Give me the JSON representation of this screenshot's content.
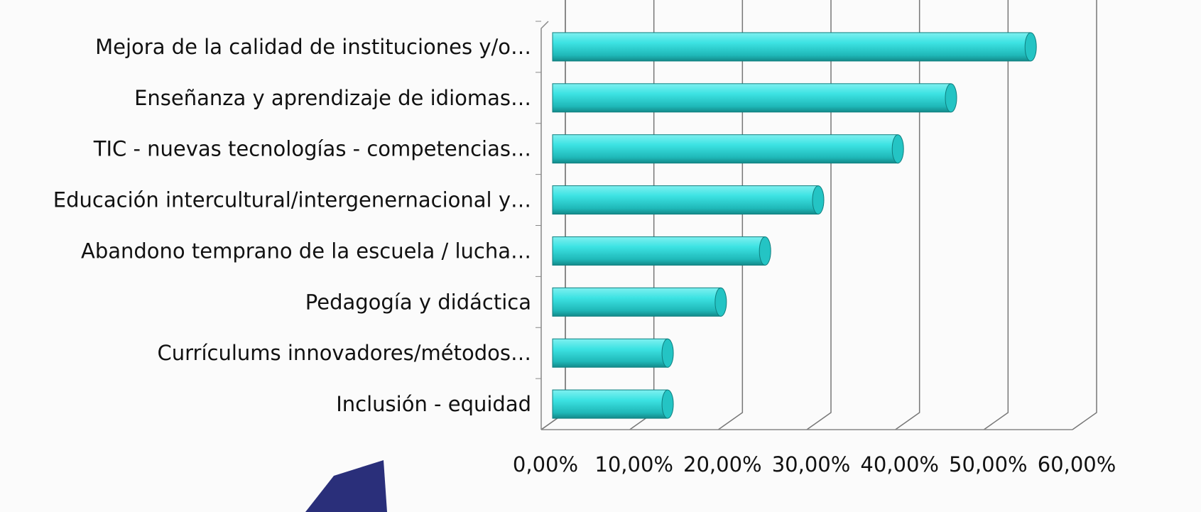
{
  "chart_data": {
    "type": "bar",
    "orientation": "horizontal",
    "categories": [
      "Mejora de la calidad de instituciones y/o…",
      "Enseñanza y aprendizaje de idiomas…",
      "TIC - nuevas tecnologías - competencias…",
      "Educación intercultural/intergenernacional y…",
      "Abandono temprano de la escuela / lucha…",
      "Pedagogía y didáctica",
      "Currículums innovadores/métodos…",
      "Inclusión - equidad"
    ],
    "values": [
      54,
      45,
      39,
      30,
      24,
      19,
      13,
      13
    ],
    "color": "#2ed6d6",
    "xlim": [
      0,
      60
    ],
    "xticks": [
      {
        "value": 0,
        "label": "0,00%"
      },
      {
        "value": 10,
        "label": "10,00%"
      },
      {
        "value": 20,
        "label": "20,00%"
      },
      {
        "value": 30,
        "label": "30,00%"
      },
      {
        "value": 40,
        "label": "40,00%"
      },
      {
        "value": 50,
        "label": "50,00%"
      },
      {
        "value": 60,
        "label": "60,00%"
      }
    ],
    "grid": true
  }
}
